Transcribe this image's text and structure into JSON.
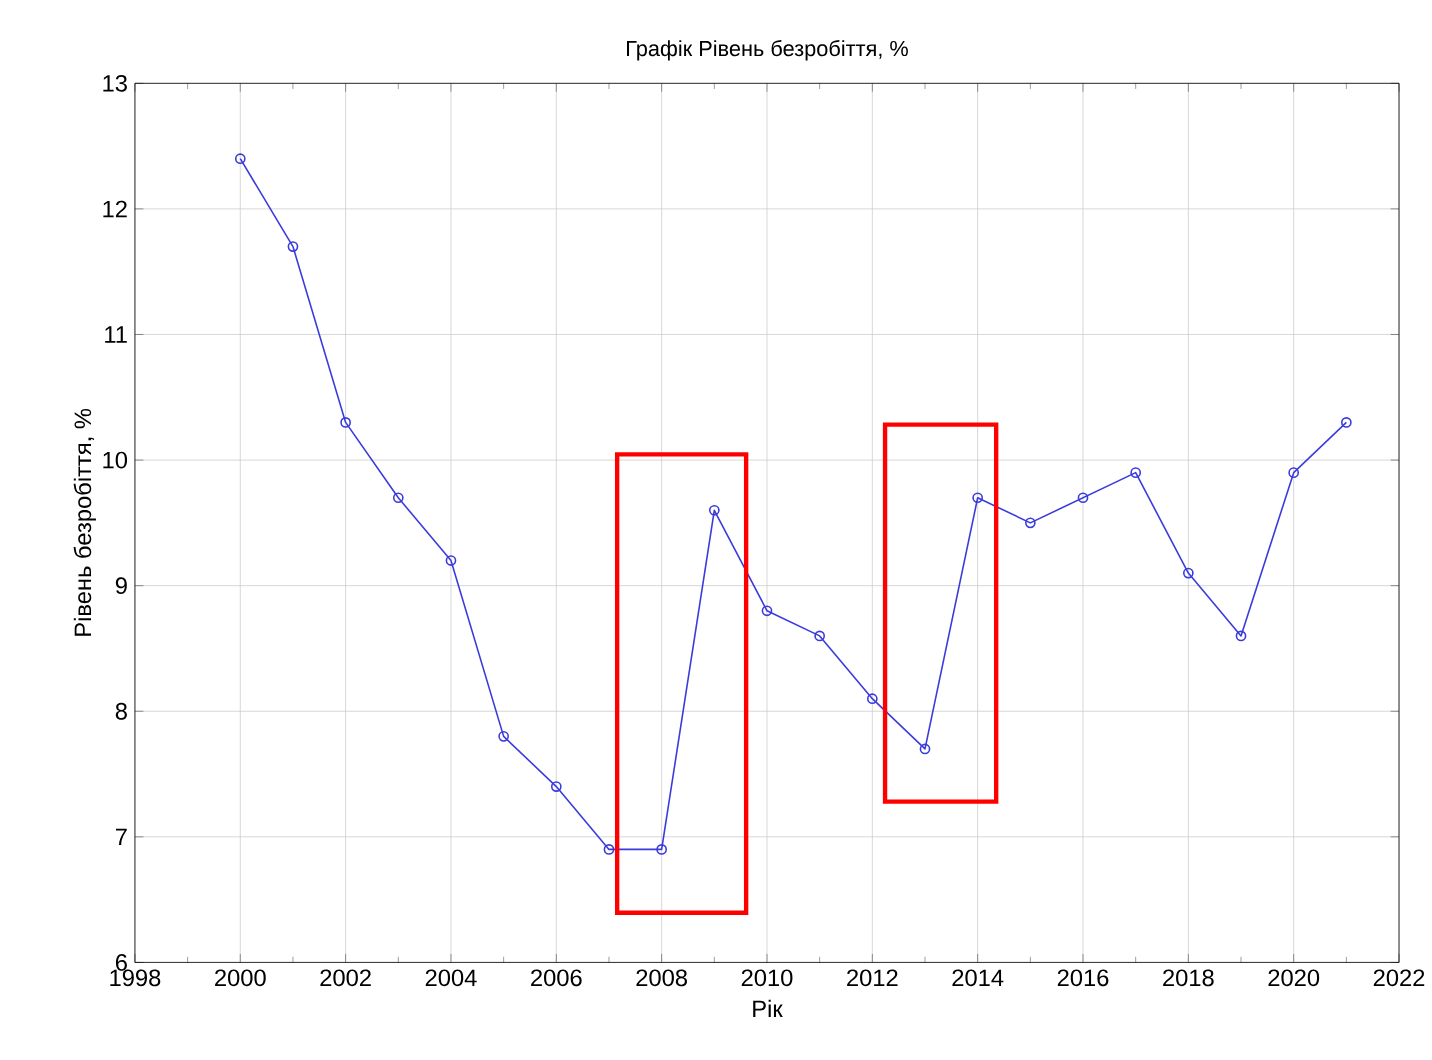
{
  "chart_data": {
    "type": "line",
    "title": "Графік Рівень безробіття, %",
    "xlabel": "Рік",
    "ylabel": "Рівень безробіття, %",
    "x": [
      2000,
      2001,
      2002,
      2003,
      2004,
      2005,
      2006,
      2007,
      2008,
      2009,
      2010,
      2011,
      2012,
      2013,
      2014,
      2015,
      2016,
      2017,
      2018,
      2019,
      2020,
      2021
    ],
    "series": [
      {
        "color": "#3b3bdc",
        "values": [
          12.4,
          11.7,
          10.3,
          9.7,
          9.2,
          7.8,
          7.4,
          6.9,
          6.9,
          9.6,
          8.8,
          8.6,
          8.1,
          7.7,
          9.7,
          9.5,
          9.7,
          9.9,
          9.1,
          8.6,
          9.9,
          10.3
        ]
      }
    ],
    "xlim": [
      1998,
      2022
    ],
    "xticks": [
      1998,
      2000,
      2002,
      2004,
      2006,
      2008,
      2010,
      2012,
      2014,
      2016,
      2018,
      2020,
      2022
    ],
    "ylim": [
      6,
      13
    ],
    "yticks": [
      6,
      7,
      8,
      9,
      10,
      11,
      12,
      13
    ],
    "grid": true,
    "marker": "circle",
    "line_style": "solid"
  }
}
